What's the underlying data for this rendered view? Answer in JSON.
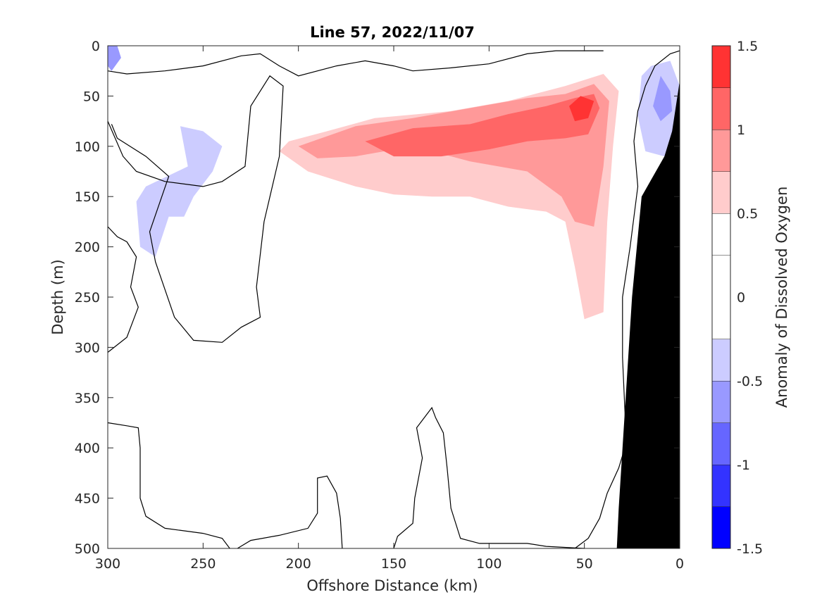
{
  "chart_data": {
    "type": "heatmap",
    "title": "Line 57, 2022/11/07",
    "xlabel": "Offshore Distance (km)",
    "ylabel": "Depth (m)",
    "colorbar_label": "Anomaly of Dissolved Oxygen",
    "xlim": [
      300,
      0
    ],
    "ylim": [
      0,
      500
    ],
    "x_reversed": true,
    "y_reversed": true,
    "x_ticks": [
      "300",
      "250",
      "200",
      "150",
      "100",
      "50",
      "0"
    ],
    "x_tick_values": [
      300,
      250,
      200,
      150,
      100,
      50,
      0
    ],
    "y_ticks": [
      "0",
      "50",
      "100",
      "150",
      "200",
      "250",
      "300",
      "350",
      "400",
      "450",
      "500"
    ],
    "y_tick_values": [
      0,
      50,
      100,
      150,
      200,
      250,
      300,
      350,
      400,
      450,
      500
    ],
    "colorbar": {
      "clim": [
        -1.5,
        1.5
      ],
      "tick_labels": [
        "1.5",
        "1",
        "0.5",
        "0",
        "-0.5",
        "-1",
        "-1.5"
      ],
      "tick_values": [
        1.5,
        1,
        0.5,
        0,
        -0.5,
        -1,
        -1.5
      ],
      "levels": [
        -1.5,
        -1.25,
        -1.0,
        -0.75,
        -0.5,
        -0.25,
        0.25,
        0.5,
        0.75,
        1.0,
        1.25,
        1.5
      ],
      "colors": [
        "#0000ff",
        "#3333ff",
        "#6666ff",
        "#9999ff",
        "#ccccff",
        "#ffffff",
        "#ffffff",
        "#ffcccc",
        "#ff9999",
        "#ff6666",
        "#ff3333",
        "#ff0000"
      ]
    },
    "contours": [
      {
        "level": 0.25,
        "points": [
          [
            220,
            65
          ],
          [
            190,
            58
          ],
          [
            160,
            52
          ],
          [
            130,
            48
          ],
          [
            100,
            45
          ],
          [
            70,
            38
          ],
          [
            50,
            20
          ],
          [
            40,
            15
          ],
          [
            32,
            25
          ],
          [
            30,
            120
          ],
          [
            29,
            220
          ],
          [
            30,
            320
          ],
          [
            34,
            350
          ],
          [
            45,
            365
          ],
          [
            70,
            362
          ],
          [
            90,
            352
          ],
          [
            100,
            335
          ],
          [
            105,
            315
          ],
          [
            95,
            300
          ],
          [
            98,
            270
          ],
          [
            100,
            240
          ],
          [
            110,
            215
          ],
          [
            122,
            205
          ],
          [
            130,
            195
          ],
          [
            150,
            170
          ],
          [
            160,
            205
          ],
          [
            165,
            240
          ],
          [
            190,
            240
          ],
          [
            200,
            245
          ],
          [
            205,
            230
          ],
          [
            205,
            185
          ],
          [
            215,
            165
          ],
          [
            213,
            130
          ],
          [
            218,
            90
          ]
        ]
      },
      {
        "level": 0.5,
        "points": [
          [
            205,
            95
          ],
          [
            185,
            85
          ],
          [
            160,
            72
          ],
          [
            120,
            65
          ],
          [
            90,
            55
          ],
          [
            60,
            40
          ],
          [
            40,
            28
          ],
          [
            32,
            45
          ],
          [
            35,
            100
          ],
          [
            38,
            175
          ],
          [
            40,
            265
          ],
          [
            50,
            272
          ],
          [
            55,
            220
          ],
          [
            60,
            175
          ],
          [
            70,
            165
          ],
          [
            90,
            160
          ],
          [
            110,
            150
          ],
          [
            130,
            150
          ],
          [
            150,
            148
          ],
          [
            170,
            140
          ],
          [
            195,
            125
          ],
          [
            210,
            105
          ]
        ]
      },
      {
        "level": 0.75,
        "points": [
          [
            200,
            100
          ],
          [
            170,
            80
          ],
          [
            140,
            72
          ],
          [
            110,
            62
          ],
          [
            80,
            52
          ],
          [
            60,
            48
          ],
          [
            45,
            38
          ],
          [
            37,
            55
          ],
          [
            40,
            120
          ],
          [
            45,
            180
          ],
          [
            55,
            175
          ],
          [
            62,
            150
          ],
          [
            80,
            125
          ],
          [
            110,
            115
          ],
          [
            140,
            100
          ],
          [
            170,
            110
          ],
          [
            190,
            112
          ]
        ]
      },
      {
        "level": 1.0,
        "points": [
          [
            165,
            95
          ],
          [
            140,
            82
          ],
          [
            110,
            78
          ],
          [
            90,
            68
          ],
          [
            70,
            60
          ],
          [
            55,
            52
          ],
          [
            45,
            48
          ],
          [
            42,
            62
          ],
          [
            48,
            88
          ],
          [
            60,
            92
          ],
          [
            80,
            95
          ],
          [
            100,
            103
          ],
          [
            125,
            110
          ],
          [
            150,
            110
          ]
        ]
      },
      {
        "level": 1.25,
        "points": [
          [
            58,
            60
          ],
          [
            52,
            50
          ],
          [
            45,
            55
          ],
          [
            48,
            72
          ],
          [
            55,
            75
          ]
        ]
      },
      {
        "level": 0.25,
        "points": [
          [
            280,
            80
          ],
          [
            270,
            60
          ],
          [
            260,
            40
          ],
          [
            270,
            38
          ],
          [
            282,
            55
          ],
          [
            287,
            75
          ],
          [
            282,
            100
          ],
          [
            275,
            105
          ]
        ]
      },
      {
        "level": 0.25,
        "points": [
          [
            300,
            230
          ],
          [
            295,
            240
          ],
          [
            293,
            270
          ],
          [
            297,
            285
          ],
          [
            300,
            280
          ]
        ]
      },
      {
        "level": 0.25,
        "points": [
          [
            160,
            355
          ],
          [
            165,
            362
          ],
          [
            162,
            370
          ],
          [
            157,
            362
          ]
        ]
      },
      {
        "level": 0.25,
        "points": [
          [
            205,
            240
          ],
          [
            202,
            245
          ],
          [
            205,
            250
          ],
          [
            208,
            245
          ]
        ]
      },
      {
        "level": -0.25,
        "points": [
          [
            260,
            170
          ],
          [
            255,
            150
          ],
          [
            245,
            125
          ],
          [
            240,
            100
          ],
          [
            250,
            85
          ],
          [
            262,
            80
          ],
          [
            258,
            120
          ],
          [
            280,
            140
          ],
          [
            285,
            155
          ],
          [
            283,
            200
          ],
          [
            275,
            210
          ],
          [
            268,
            170
          ]
        ]
      },
      {
        "level": -0.25,
        "points": [
          [
            20,
            30
          ],
          [
            15,
            20
          ],
          [
            5,
            15
          ],
          [
            0,
            40
          ],
          [
            2,
            80
          ],
          [
            8,
            110
          ],
          [
            18,
            105
          ],
          [
            22,
            70
          ]
        ]
      },
      {
        "level": -0.5,
        "points": [
          [
            10,
            30
          ],
          [
            5,
            45
          ],
          [
            4,
            65
          ],
          [
            10,
            75
          ],
          [
            14,
            60
          ]
        ]
      },
      {
        "level": -0.5,
        "points": [
          [
            300,
            0
          ],
          [
            295,
            0
          ],
          [
            293,
            12
          ],
          [
            298,
            25
          ],
          [
            300,
            20
          ]
        ]
      }
    ],
    "zero_lines": [
      [
        [
          300,
          25
        ],
        [
          290,
          28
        ],
        [
          270,
          25
        ],
        [
          250,
          20
        ],
        [
          230,
          10
        ],
        [
          220,
          8
        ],
        [
          210,
          20
        ],
        [
          200,
          30
        ],
        [
          180,
          20
        ],
        [
          165,
          15
        ],
        [
          150,
          20
        ],
        [
          140,
          25
        ],
        [
          120,
          22
        ],
        [
          100,
          18
        ],
        [
          80,
          8
        ],
        [
          65,
          5
        ],
        [
          55,
          5
        ],
        [
          50,
          5
        ],
        [
          40,
          5
        ]
      ],
      [
        [
          300,
          75
        ],
        [
          292,
          110
        ],
        [
          285,
          125
        ],
        [
          270,
          135
        ],
        [
          250,
          140
        ],
        [
          240,
          135
        ],
        [
          228,
          120
        ],
        [
          225,
          60
        ],
        [
          215,
          30
        ],
        [
          208,
          40
        ],
        [
          210,
          110
        ],
        [
          218,
          175
        ],
        [
          222,
          240
        ],
        [
          220,
          270
        ],
        [
          230,
          280
        ],
        [
          240,
          295
        ],
        [
          255,
          293
        ],
        [
          265,
          270
        ],
        [
          275,
          215
        ],
        [
          278,
          185
        ],
        [
          268,
          130
        ],
        [
          280,
          110
        ],
        [
          295,
          92
        ],
        [
          298,
          78
        ]
      ],
      [
        [
          300,
          180
        ],
        [
          295,
          190
        ],
        [
          290,
          195
        ],
        [
          285,
          210
        ],
        [
          288,
          240
        ],
        [
          284,
          260
        ],
        [
          290,
          290
        ],
        [
          300,
          305
        ]
      ],
      [
        [
          300,
          375
        ],
        [
          290,
          378
        ],
        [
          284,
          380
        ],
        [
          283,
          400
        ],
        [
          283,
          450
        ],
        [
          280,
          468
        ],
        [
          270,
          480
        ],
        [
          250,
          485
        ],
        [
          240,
          490
        ],
        [
          236,
          500
        ]
      ],
      [
        [
          232,
          500
        ],
        [
          225,
          492
        ],
        [
          210,
          487
        ],
        [
          195,
          480
        ],
        [
          190,
          465
        ],
        [
          190,
          430
        ],
        [
          185,
          428
        ],
        [
          180,
          445
        ],
        [
          178,
          470
        ],
        [
          177,
          500
        ]
      ],
      [
        [
          150,
          500
        ],
        [
          148,
          488
        ],
        [
          140,
          475
        ],
        [
          139,
          450
        ],
        [
          135,
          410
        ],
        [
          138,
          380
        ],
        [
          130,
          360
        ],
        [
          128,
          370
        ],
        [
          124,
          385
        ],
        [
          122,
          420
        ],
        [
          120,
          460
        ],
        [
          115,
          490
        ],
        [
          105,
          495
        ],
        [
          80,
          495
        ],
        [
          70,
          498
        ],
        [
          50,
          500
        ]
      ],
      [
        [
          55,
          500
        ],
        [
          48,
          490
        ],
        [
          42,
          470
        ],
        [
          38,
          445
        ],
        [
          32,
          420
        ],
        [
          28,
          395
        ],
        [
          30,
          310
        ],
        [
          30,
          250
        ],
        [
          26,
          200
        ],
        [
          22,
          140
        ],
        [
          24,
          95
        ],
        [
          22,
          65
        ],
        [
          18,
          40
        ],
        [
          13,
          20
        ],
        [
          5,
          8
        ],
        [
          0,
          5
        ]
      ]
    ],
    "bathymetry": [
      [
        33,
        500
      ],
      [
        32,
        460
      ],
      [
        30,
        400
      ],
      [
        28,
        340
      ],
      [
        25,
        250
      ],
      [
        22,
        190
      ],
      [
        20,
        150
      ],
      [
        14,
        130
      ],
      [
        8,
        110
      ],
      [
        4,
        85
      ],
      [
        2,
        60
      ],
      [
        0,
        35
      ],
      [
        0,
        500
      ]
    ]
  }
}
